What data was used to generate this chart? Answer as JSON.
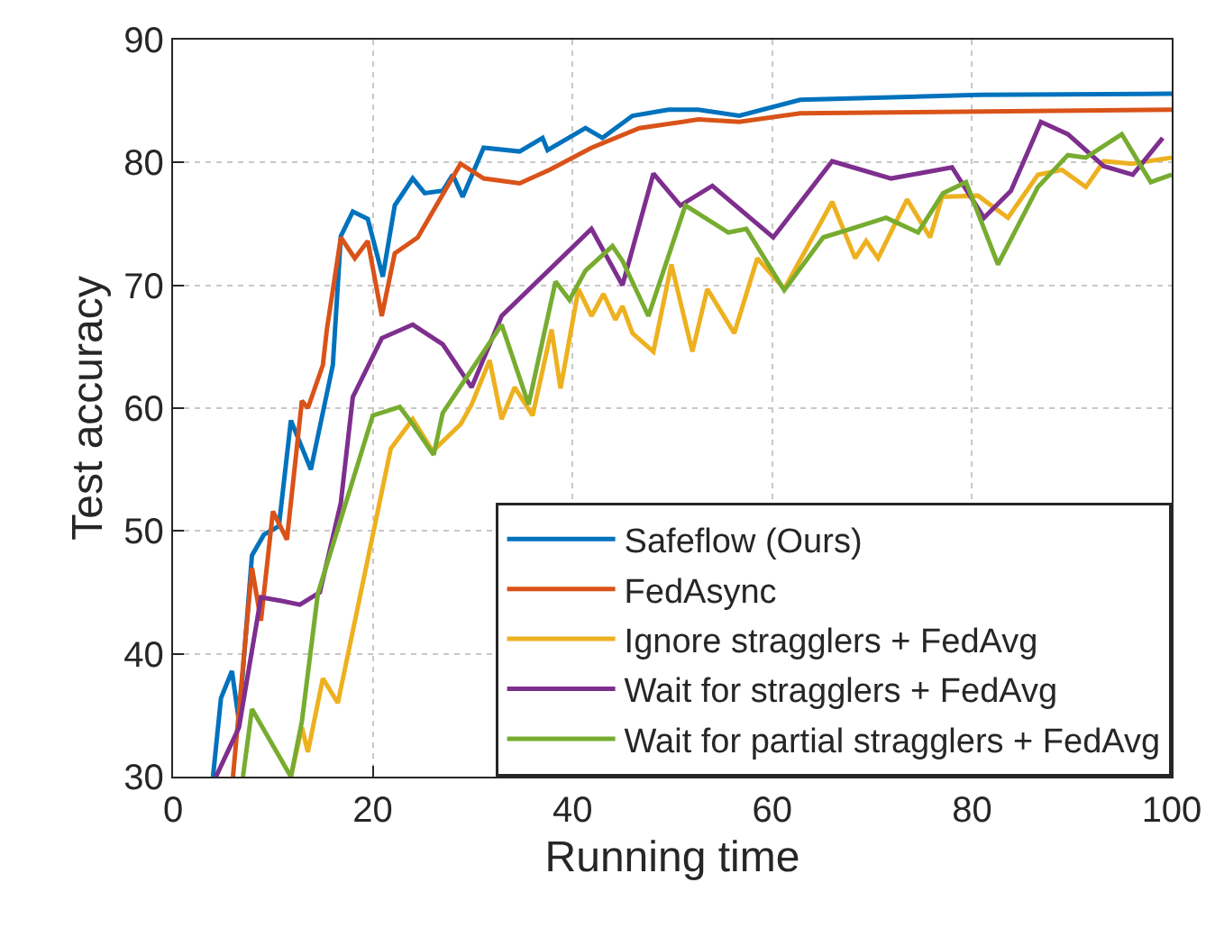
{
  "chart_data": {
    "type": "line",
    "xlabel": "Running time",
    "ylabel": "Test accuracy",
    "xlim": [
      0,
      100
    ],
    "xticks": [
      0,
      20,
      40,
      60,
      80,
      100
    ],
    "ylim": [
      30,
      90
    ],
    "yticks": [
      30,
      40,
      50,
      60,
      70,
      80,
      90
    ],
    "grid": true,
    "legend": "bottom right",
    "marker": "none",
    "line_style": "solid",
    "series": [
      {
        "name": "Safeflow (Ours)",
        "color": "#0072bd",
        "x": [
          4,
          4.8,
          5.9,
          6.6,
          7.9,
          9.1,
          10.6,
          11.8,
          13.8,
          16,
          16.8,
          18,
          19.5,
          21,
          22.2,
          24,
          25.2,
          27,
          28,
          29,
          31.1,
          34.7,
          37,
          37.5,
          41.3,
          43,
          46,
          49.6,
          52.6,
          56.7,
          62.8,
          80.7,
          100
        ],
        "values": [
          30,
          36.4,
          38.6,
          34.5,
          48,
          49.7,
          50.4,
          59,
          55,
          63.5,
          74,
          76,
          75.4,
          70.7,
          76.5,
          78.7,
          77.5,
          77.7,
          79,
          77.2,
          81.2,
          80.9,
          82,
          81,
          82.8,
          82,
          83.8,
          84.3,
          84.3,
          83.8,
          85.1,
          85.5,
          85.6
        ]
      },
      {
        "name": "FedAsync",
        "color": "#d95319",
        "x": [
          6,
          7.9,
          8.8,
          10,
          11.4,
          12.9,
          13.5,
          15,
          15.4,
          16.8,
          18.2,
          19.5,
          20.9,
          22.2,
          24.5,
          28.8,
          31.1,
          34.7,
          37.7,
          41.9,
          46.7,
          52.6,
          56.7,
          62.8,
          100
        ],
        "values": [
          30,
          47,
          42.7,
          51.6,
          49.3,
          60.6,
          60,
          63.5,
          66.4,
          73.9,
          72.2,
          73.6,
          67.5,
          72.6,
          73.9,
          79.9,
          78.7,
          78.3,
          79.4,
          81.2,
          82.8,
          83.5,
          83.3,
          84,
          84.3
        ]
      },
      {
        "name": "Ignore stragglers + FedAvg",
        "color": "#edb120",
        "x": [
          11.8,
          12.9,
          13.5,
          15,
          16.5,
          21.8,
          24,
          26,
          28.8,
          29.9,
          31.7,
          32.9,
          34.2,
          36,
          37.9,
          38.8,
          40.6,
          41.9,
          43.1,
          44.3,
          45,
          46,
          48.1,
          49.9,
          52,
          53.5,
          56.2,
          58.5,
          61.2,
          66,
          68.3,
          69.4,
          70.6,
          73.5,
          75.8,
          77,
          80.6,
          83.6,
          86.6,
          89,
          91.4,
          93.2,
          96,
          100
        ],
        "values": [
          30,
          34,
          32,
          38,
          36,
          56.7,
          59.1,
          56.5,
          58.7,
          60.3,
          63.9,
          59.1,
          61.7,
          59.4,
          66.4,
          61.6,
          69.7,
          67.5,
          69.3,
          67.2,
          68.3,
          66.1,
          64.6,
          71.7,
          64.6,
          69.7,
          66.1,
          72.2,
          69.7,
          76.8,
          72.2,
          73.6,
          72.2,
          77,
          73.9,
          77.2,
          77.3,
          75.5,
          79,
          79.4,
          78,
          80.1,
          79.9,
          80.4
        ]
      },
      {
        "name": "Wait for stragglers + FedAvg",
        "color": "#7e2f8e",
        "x": [
          4.3,
          6.6,
          8.8,
          10.9,
          12.7,
          14.7,
          16.8,
          18,
          20.9,
          24,
          27,
          29.9,
          32.9,
          41.9,
          45,
          48.1,
          50.8,
          54,
          60.1,
          66,
          71.9,
          78,
          81.2,
          83.9,
          86.9,
          89.6,
          93.2,
          96.1,
          99.1
        ],
        "values": [
          30,
          34,
          44.6,
          44.3,
          44,
          45,
          52.3,
          60.9,
          65.7,
          66.8,
          65.2,
          61.7,
          67.5,
          74.6,
          70,
          79.1,
          76.5,
          78.1,
          73.9,
          80.1,
          78.7,
          79.6,
          75.5,
          77.7,
          83.3,
          82.3,
          79.7,
          79,
          82
        ]
      },
      {
        "name": "Wait for partial stragglers + FedAvg",
        "color": "#77ac30",
        "x": [
          7,
          7.9,
          11.8,
          12.9,
          14.5,
          20,
          22.7,
          24,
          26.1,
          27,
          32.9,
          35.6,
          38.3,
          39.7,
          41.3,
          44,
          45,
          47.6,
          51.3,
          55.6,
          57.4,
          61.2,
          65.1,
          68.7,
          71.4,
          74.6,
          77.1,
          79.4,
          82.6,
          86.6,
          89.6,
          91.4,
          95,
          97.9,
          100
        ],
        "values": [
          30,
          35.5,
          30,
          34.5,
          44.9,
          59.4,
          60.1,
          58.7,
          56.2,
          59.6,
          66.8,
          60.3,
          70.3,
          68.8,
          71.2,
          73.2,
          72,
          67.5,
          76.5,
          74.3,
          74.6,
          69.6,
          73.9,
          74.8,
          75.5,
          74.3,
          77.5,
          78.4,
          71.7,
          78,
          80.6,
          80.4,
          82.3,
          78.4,
          79
        ]
      }
    ]
  }
}
